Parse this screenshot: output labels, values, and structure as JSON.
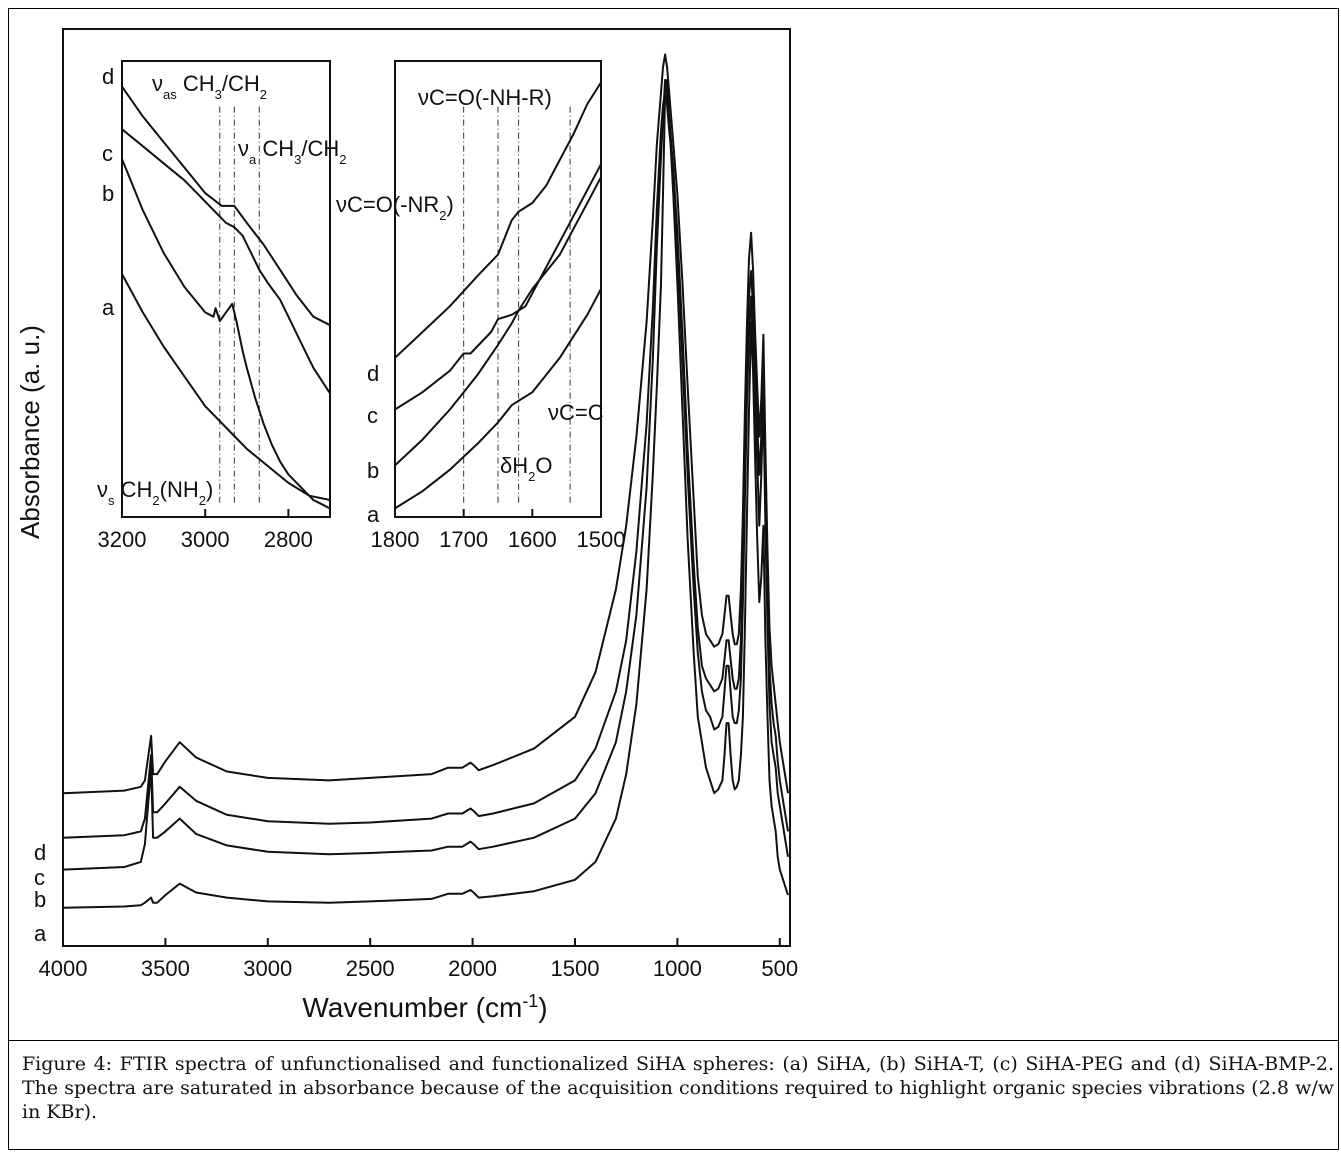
{
  "caption": "Figure 4: FTIR spectra of unfunctionalised and functionalized SiHA spheres: (a) SiHA, (b) SiHA-T, (c) SiHA-PEG and (d) SiHA-BMP-2. The spectra are saturated in absorbance because of the acquisition conditions required to highlight organic species vibrations (2.8 w/w in KBr).",
  "chart_data": [
    {
      "id": "main",
      "type": "line",
      "title": "",
      "xlabel": "Wavenumber (cm⁻¹)",
      "ylabel": "Absorbance (a. u.)",
      "xlim": [
        4000,
        450
      ],
      "x_reversed": true,
      "y_ticks_shown": false,
      "xticks": [
        4000,
        3500,
        3000,
        2500,
        2000,
        1500,
        1000,
        500
      ],
      "xtick_labels": [
        "4000",
        "3500",
        "3000",
        "2500",
        "2000",
        "1500",
        "1000",
        "500"
      ],
      "series": [
        {
          "name": "a",
          "x": [
            4000,
            3700,
            3620,
            3600,
            3570,
            3560,
            3540,
            3500,
            3430,
            3350,
            3200,
            3000,
            2700,
            2500,
            2200,
            2120,
            2050,
            2010,
            1995,
            1970,
            1900,
            1700,
            1500,
            1400,
            1300,
            1250,
            1200,
            1150,
            1120,
            1100,
            1080,
            1070,
            1060,
            1050,
            1040,
            1020,
            1000,
            975,
            950,
            920,
            900,
            880,
            860,
            840,
            820,
            800,
            780,
            770,
            760,
            750,
            740,
            730,
            720,
            710,
            700,
            690,
            680,
            670,
            660,
            650,
            640,
            630,
            620,
            610,
            600,
            590,
            580,
            570,
            560,
            550,
            540,
            530,
            520,
            510,
            500,
            480,
            460
          ],
          "y": [
            0,
            0.01,
            0.02,
            0.04,
            0.08,
            0.04,
            0.04,
            0.1,
            0.19,
            0.12,
            0.08,
            0.05,
            0.04,
            0.05,
            0.07,
            0.11,
            0.11,
            0.14,
            0.12,
            0.08,
            0.09,
            0.13,
            0.22,
            0.36,
            0.7,
            1.05,
            1.6,
            2.5,
            3.4,
            4.1,
            4.9,
            5.6,
            6.4,
            6.5,
            6.2,
            5.6,
            4.9,
            3.9,
            2.9,
            2.0,
            1.5,
            1.3,
            1.1,
            1.0,
            0.9,
            0.93,
            1.0,
            1.2,
            1.45,
            1.45,
            1.2,
            1.0,
            0.93,
            0.95,
            1.0,
            1.2,
            1.5,
            2.2,
            3.1,
            3.9,
            4.6,
            4.2,
            3.5,
            2.9,
            2.4,
            2.6,
            3.0,
            2.1,
            1.5,
            1.0,
            0.8,
            0.7,
            0.6,
            0.4,
            0.3,
            0.2,
            0.1
          ]
        },
        {
          "name": "b",
          "x": [
            4000,
            3700,
            3620,
            3600,
            3570,
            3560,
            3540,
            3500,
            3430,
            3350,
            3200,
            3000,
            2700,
            2500,
            2200,
            2120,
            2050,
            2010,
            1995,
            1970,
            1900,
            1700,
            1500,
            1400,
            1300,
            1250,
            1200,
            1150,
            1120,
            1100,
            1080,
            1070,
            1060,
            1050,
            1040,
            1020,
            1000,
            975,
            950,
            920,
            900,
            880,
            860,
            840,
            820,
            800,
            780,
            770,
            760,
            750,
            740,
            730,
            720,
            710,
            700,
            690,
            680,
            670,
            660,
            650,
            640,
            630,
            620,
            610,
            600,
            590,
            580,
            570,
            560,
            550,
            540,
            530,
            520,
            510,
            500,
            480,
            460
          ],
          "y": [
            0.3,
            0.32,
            0.36,
            0.5,
            1.1,
            0.55,
            0.55,
            0.6,
            0.7,
            0.58,
            0.49,
            0.44,
            0.42,
            0.43,
            0.45,
            0.48,
            0.48,
            0.52,
            0.5,
            0.46,
            0.48,
            0.55,
            0.7,
            0.9,
            1.3,
            1.7,
            2.3,
            3.3,
            4.3,
            5.2,
            5.9,
            6.2,
            6.5,
            6.4,
            6.2,
            5.8,
            5.2,
            4.3,
            3.4,
            2.5,
            2.0,
            1.7,
            1.55,
            1.5,
            1.4,
            1.42,
            1.5,
            1.7,
            1.9,
            1.9,
            1.7,
            1.5,
            1.45,
            1.45,
            1.55,
            1.8,
            2.4,
            3.2,
            4.0,
            4.5,
            4.8,
            4.4,
            3.9,
            3.5,
            3.0,
            3.4,
            4.0,
            3.0,
            2.2,
            1.6,
            1.3,
            1.2,
            1.1,
            0.9,
            0.8,
            0.6,
            0.4
          ]
        },
        {
          "name": "c",
          "x": [
            4000,
            3700,
            3620,
            3600,
            3570,
            3560,
            3540,
            3500,
            3430,
            3350,
            3200,
            3000,
            2700,
            2500,
            2200,
            2120,
            2050,
            2010,
            1995,
            1970,
            1900,
            1700,
            1500,
            1400,
            1300,
            1250,
            1200,
            1150,
            1120,
            1100,
            1080,
            1070,
            1060,
            1050,
            1040,
            1020,
            1000,
            975,
            950,
            920,
            900,
            880,
            860,
            840,
            820,
            800,
            780,
            770,
            760,
            750,
            740,
            730,
            720,
            710,
            700,
            690,
            680,
            670,
            660,
            650,
            640,
            630,
            620,
            610,
            600,
            590,
            580,
            570,
            560,
            550,
            540,
            530,
            520,
            510,
            500,
            480,
            460
          ],
          "y": [
            0.55,
            0.57,
            0.6,
            0.7,
            1.2,
            0.75,
            0.75,
            0.82,
            0.95,
            0.84,
            0.73,
            0.68,
            0.66,
            0.67,
            0.7,
            0.74,
            0.74,
            0.78,
            0.76,
            0.72,
            0.74,
            0.82,
            1.0,
            1.25,
            1.7,
            2.1,
            2.8,
            3.8,
            4.7,
            5.5,
            6.1,
            6.3,
            6.4,
            6.3,
            6.1,
            5.8,
            5.3,
            4.5,
            3.6,
            2.7,
            2.2,
            1.9,
            1.8,
            1.75,
            1.7,
            1.72,
            1.8,
            1.95,
            2.1,
            2.1,
            1.95,
            1.8,
            1.72,
            1.72,
            1.8,
            2.1,
            2.7,
            3.5,
            4.3,
            4.8,
            5.0,
            4.7,
            4.2,
            3.8,
            3.4,
            3.7,
            4.2,
            3.4,
            2.5,
            1.9,
            1.6,
            1.45,
            1.35,
            1.15,
            1.0,
            0.8,
            0.6
          ]
        },
        {
          "name": "d",
          "x": [
            4000,
            3700,
            3620,
            3600,
            3570,
            3560,
            3540,
            3500,
            3430,
            3350,
            3200,
            3000,
            2700,
            2500,
            2200,
            2120,
            2050,
            2010,
            1995,
            1970,
            1900,
            1700,
            1500,
            1400,
            1300,
            1250,
            1200,
            1150,
            1120,
            1100,
            1080,
            1070,
            1060,
            1050,
            1040,
            1020,
            1000,
            975,
            950,
            920,
            900,
            880,
            860,
            840,
            820,
            800,
            780,
            770,
            760,
            750,
            740,
            730,
            720,
            710,
            700,
            690,
            680,
            670,
            660,
            650,
            640,
            630,
            620,
            610,
            600,
            590,
            580,
            570,
            560,
            550,
            540,
            530,
            520,
            510,
            500,
            480,
            460
          ],
          "y": [
            0.9,
            0.92,
            0.95,
            1.0,
            1.35,
            1.05,
            1.05,
            1.15,
            1.3,
            1.18,
            1.07,
            1.02,
            1.0,
            1.02,
            1.05,
            1.1,
            1.1,
            1.14,
            1.12,
            1.08,
            1.12,
            1.25,
            1.5,
            1.85,
            2.5,
            3.0,
            3.7,
            4.6,
            5.4,
            6.0,
            6.4,
            6.6,
            6.7,
            6.6,
            6.4,
            6.0,
            5.6,
            4.9,
            4.1,
            3.2,
            2.6,
            2.3,
            2.15,
            2.1,
            2.05,
            2.07,
            2.15,
            2.3,
            2.45,
            2.45,
            2.3,
            2.15,
            2.07,
            2.07,
            2.15,
            2.5,
            3.1,
            3.9,
            4.6,
            5.1,
            5.3,
            5.0,
            4.5,
            4.1,
            3.7,
            4.0,
            4.5,
            3.6,
            2.8,
            2.2,
            1.9,
            1.75,
            1.6,
            1.45,
            1.3,
            1.1,
            0.9
          ]
        }
      ]
    },
    {
      "id": "inset-ch",
      "type": "line",
      "title": "",
      "xlim": [
        3200,
        2700
      ],
      "x_reversed": true,
      "xticks": [
        3200,
        3000,
        2800
      ],
      "xtick_labels": [
        "3200",
        "3000",
        "2800"
      ],
      "series": [
        {
          "name": "a",
          "x": [
            3200,
            3150,
            3100,
            3050,
            3000,
            2950,
            2900,
            2850,
            2800,
            2750,
            2700
          ],
          "y": [
            0.55,
            0.46,
            0.38,
            0.31,
            0.24,
            0.19,
            0.14,
            0.1,
            0.06,
            0.03,
            0.02
          ]
        },
        {
          "name": "b",
          "x": [
            3200,
            3150,
            3100,
            3050,
            3000,
            2980,
            2975,
            2965,
            2950,
            2935,
            2925,
            2910,
            2900,
            2880,
            2860,
            2840,
            2820,
            2800,
            2780,
            2760,
            2740,
            2720,
            2700
          ],
          "y": [
            0.82,
            0.7,
            0.6,
            0.52,
            0.46,
            0.45,
            0.47,
            0.44,
            0.46,
            0.48,
            0.44,
            0.37,
            0.33,
            0.26,
            0.2,
            0.15,
            0.11,
            0.08,
            0.06,
            0.04,
            0.02,
            0.01,
            0
          ]
        },
        {
          "name": "c",
          "x": [
            3200,
            3150,
            3100,
            3050,
            3000,
            2950,
            2930,
            2910,
            2890,
            2870,
            2850,
            2820,
            2800,
            2760,
            2740,
            2720,
            2700
          ],
          "y": [
            0.89,
            0.85,
            0.81,
            0.77,
            0.72,
            0.67,
            0.66,
            0.64,
            0.6,
            0.56,
            0.53,
            0.49,
            0.45,
            0.37,
            0.33,
            0.3,
            0.27
          ]
        },
        {
          "name": "d",
          "x": [
            3200,
            3150,
            3100,
            3050,
            3000,
            2960,
            2930,
            2900,
            2860,
            2820,
            2780,
            2740,
            2700
          ],
          "y": [
            0.99,
            0.92,
            0.86,
            0.8,
            0.74,
            0.71,
            0.71,
            0.67,
            0.62,
            0.56,
            0.5,
            0.45,
            0.43
          ]
        }
      ],
      "annotations": [
        {
          "text": "νas CH3/CH2",
          "x": 2930
        },
        {
          "text": "νa CH3/CH2",
          "x": 2870
        },
        {
          "text": "νs CH2(NH2)",
          "x": 2965
        }
      ],
      "curve_labels": [
        "d",
        "c",
        "b",
        "a"
      ]
    },
    {
      "id": "inset-co",
      "type": "line",
      "title": "",
      "xlim": [
        1800,
        1500
      ],
      "x_reversed": true,
      "xticks": [
        1800,
        1700,
        1600,
        1500
      ],
      "xtick_labels": [
        "1800",
        "1700",
        "1600",
        "1500"
      ],
      "series": [
        {
          "name": "a",
          "x": [
            1800,
            1760,
            1720,
            1680,
            1650,
            1630,
            1620,
            1610,
            1600,
            1580,
            1560,
            1540,
            1520,
            1500
          ],
          "y": [
            0.01,
            0.05,
            0.1,
            0.16,
            0.21,
            0.25,
            0.26,
            0.27,
            0.28,
            0.32,
            0.36,
            0.41,
            0.46,
            0.52
          ]
        },
        {
          "name": "b",
          "x": [
            1800,
            1760,
            1720,
            1700,
            1680,
            1650,
            1630,
            1620,
            1600,
            1580,
            1560,
            1540,
            1520,
            1500
          ],
          "y": [
            0.11,
            0.17,
            0.24,
            0.28,
            0.32,
            0.39,
            0.44,
            0.47,
            0.52,
            0.56,
            0.6,
            0.66,
            0.72,
            0.78
          ]
        },
        {
          "name": "c",
          "x": [
            1800,
            1760,
            1720,
            1705,
            1700,
            1690,
            1660,
            1650,
            1630,
            1610,
            1590,
            1570,
            1550,
            1530,
            1510,
            1500
          ],
          "y": [
            0.24,
            0.28,
            0.33,
            0.36,
            0.37,
            0.37,
            0.42,
            0.45,
            0.46,
            0.48,
            0.54,
            0.6,
            0.66,
            0.72,
            0.78,
            0.81
          ]
        },
        {
          "name": "d",
          "x": [
            1800,
            1760,
            1720,
            1680,
            1650,
            1640,
            1630,
            1620,
            1600,
            1580,
            1560,
            1540,
            1520,
            1500
          ],
          "y": [
            0.36,
            0.42,
            0.48,
            0.55,
            0.6,
            0.64,
            0.68,
            0.7,
            0.72,
            0.76,
            0.82,
            0.88,
            0.95,
            1.0
          ]
        }
      ],
      "annotations": [
        {
          "text": "νC=O(-NH-R)",
          "x": 1650
        },
        {
          "text": "νC=O(-NR2)",
          "x": 1700
        },
        {
          "text": "νC=C",
          "x": 1545
        },
        {
          "text": "δH2O",
          "x": 1620
        }
      ],
      "curve_labels": [
        "d",
        "c",
        "b",
        "a"
      ]
    }
  ]
}
